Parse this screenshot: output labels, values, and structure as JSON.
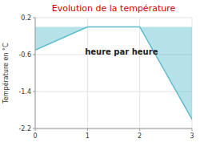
{
  "chart_data": {
    "type": "area",
    "title": "Evolution de la température",
    "ylabel": "Température en °C",
    "x": [
      0,
      1,
      2,
      3
    ],
    "values": [
      -0.5,
      0.0,
      0.0,
      -2.0
    ],
    "color": "#5bbccc",
    "xlim": [
      0,
      3
    ],
    "ylim": [
      -2.2,
      0.2
    ],
    "xticks": [
      0,
      1,
      2,
      3
    ],
    "yticks": [
      0.2,
      -0.6,
      -1.4,
      -2.2
    ],
    "grid": true,
    "annotations": [
      {
        "text": "heure par heure",
        "x": 1.65,
        "y": -0.55
      }
    ]
  }
}
